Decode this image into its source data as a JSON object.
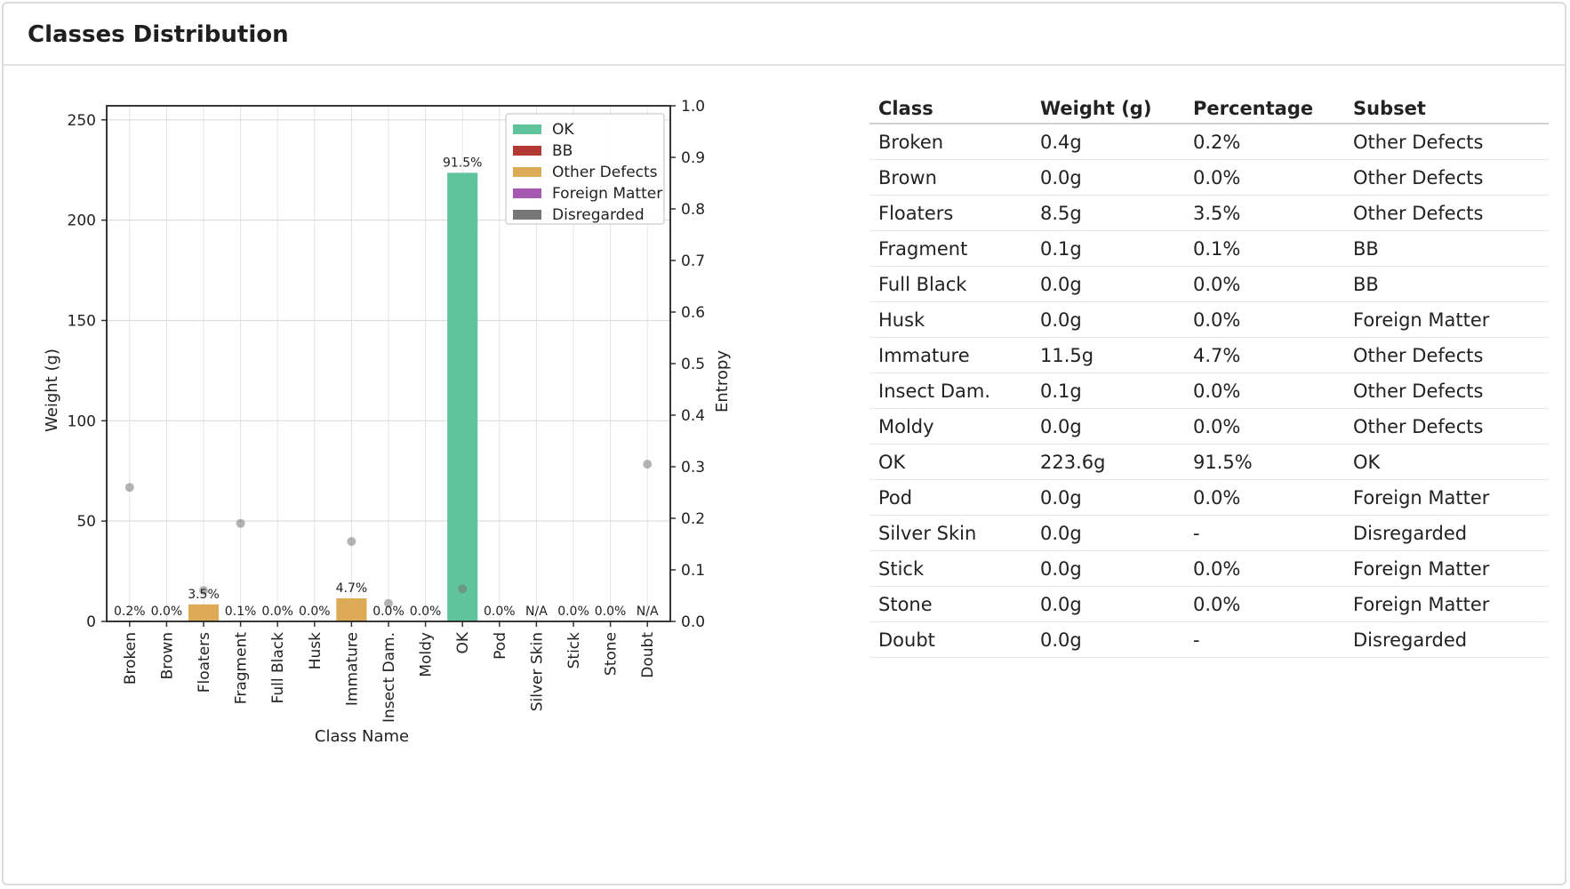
{
  "header": {
    "title": "Classes Distribution"
  },
  "chart_data": {
    "type": "bar",
    "xlabel": "Class Name",
    "ylabel": "Weight (g)",
    "y2label": "Entropy",
    "ylim": [
      0,
      257
    ],
    "y2lim": [
      0,
      1.0
    ],
    "yticks": [
      0,
      50,
      100,
      150,
      200,
      250
    ],
    "y2ticks": [
      "0.0",
      "0.1",
      "0.2",
      "0.3",
      "0.4",
      "0.5",
      "0.6",
      "0.7",
      "0.8",
      "0.9",
      "1.0"
    ],
    "grid": true,
    "legend_position": "top-right",
    "categories": [
      "Broken",
      "Brown",
      "Floaters",
      "Fragment",
      "Full Black",
      "Husk",
      "Immature",
      "Insect Dam.",
      "Moldy",
      "OK",
      "Pod",
      "Silver Skin",
      "Stick",
      "Stone",
      "Doubt"
    ],
    "values": [
      0.4,
      0.0,
      8.5,
      0.1,
      0.0,
      0.0,
      11.5,
      0.1,
      0.0,
      223.6,
      0.0,
      0.0,
      0.0,
      0.0,
      0.0
    ],
    "bar_labels": [
      "0.2%",
      "0.0%",
      "3.5%",
      "0.1%",
      "0.0%",
      "0.0%",
      "4.7%",
      "0.0%",
      "0.0%",
      "91.5%",
      "0.0%",
      "N/A",
      "0.0%",
      "0.0%",
      "N/A"
    ],
    "subsets": [
      "Other Defects",
      "Other Defects",
      "Other Defects",
      "BB",
      "BB",
      "Foreign Matter",
      "Other Defects",
      "Other Defects",
      "Other Defects",
      "OK",
      "Foreign Matter",
      "Disregarded",
      "Foreign Matter",
      "Foreign Matter",
      "Disregarded"
    ],
    "entropy": [
      {
        "category": "Broken",
        "value": 0.26
      },
      {
        "category": "Floaters",
        "value": 0.06
      },
      {
        "category": "Fragment",
        "value": 0.19
      },
      {
        "category": "Immature",
        "value": 0.155
      },
      {
        "category": "Insect Dam.",
        "value": 0.035
      },
      {
        "category": "OK",
        "value": 0.063
      },
      {
        "category": "Doubt",
        "value": 0.305
      }
    ],
    "legend": [
      {
        "name": "OK",
        "color": "#5fc39b"
      },
      {
        "name": "BB",
        "color": "#b23a33"
      },
      {
        "name": "Other Defects",
        "color": "#ddaa55"
      },
      {
        "name": "Foreign Matter",
        "color": "#a559b3"
      },
      {
        "name": "Disregarded",
        "color": "#777777"
      }
    ]
  },
  "table": {
    "headers": [
      "Class",
      "Weight (g)",
      "Percentage",
      "Subset"
    ],
    "rows": [
      [
        "Broken",
        "0.4g",
        "0.2%",
        "Other Defects"
      ],
      [
        "Brown",
        "0.0g",
        "0.0%",
        "Other Defects"
      ],
      [
        "Floaters",
        "8.5g",
        "3.5%",
        "Other Defects"
      ],
      [
        "Fragment",
        "0.1g",
        "0.1%",
        "BB"
      ],
      [
        "Full Black",
        "0.0g",
        "0.0%",
        "BB"
      ],
      [
        "Husk",
        "0.0g",
        "0.0%",
        "Foreign Matter"
      ],
      [
        "Immature",
        "11.5g",
        "4.7%",
        "Other Defects"
      ],
      [
        "Insect Dam.",
        "0.1g",
        "0.0%",
        "Other Defects"
      ],
      [
        "Moldy",
        "0.0g",
        "0.0%",
        "Other Defects"
      ],
      [
        "OK",
        "223.6g",
        "91.5%",
        "OK"
      ],
      [
        "Pod",
        "0.0g",
        "0.0%",
        "Foreign Matter"
      ],
      [
        "Silver Skin",
        "0.0g",
        "-",
        "Disregarded"
      ],
      [
        "Stick",
        "0.0g",
        "0.0%",
        "Foreign Matter"
      ],
      [
        "Stone",
        "0.0g",
        "0.0%",
        "Foreign Matter"
      ],
      [
        "Doubt",
        "0.0g",
        "-",
        "Disregarded"
      ]
    ]
  }
}
